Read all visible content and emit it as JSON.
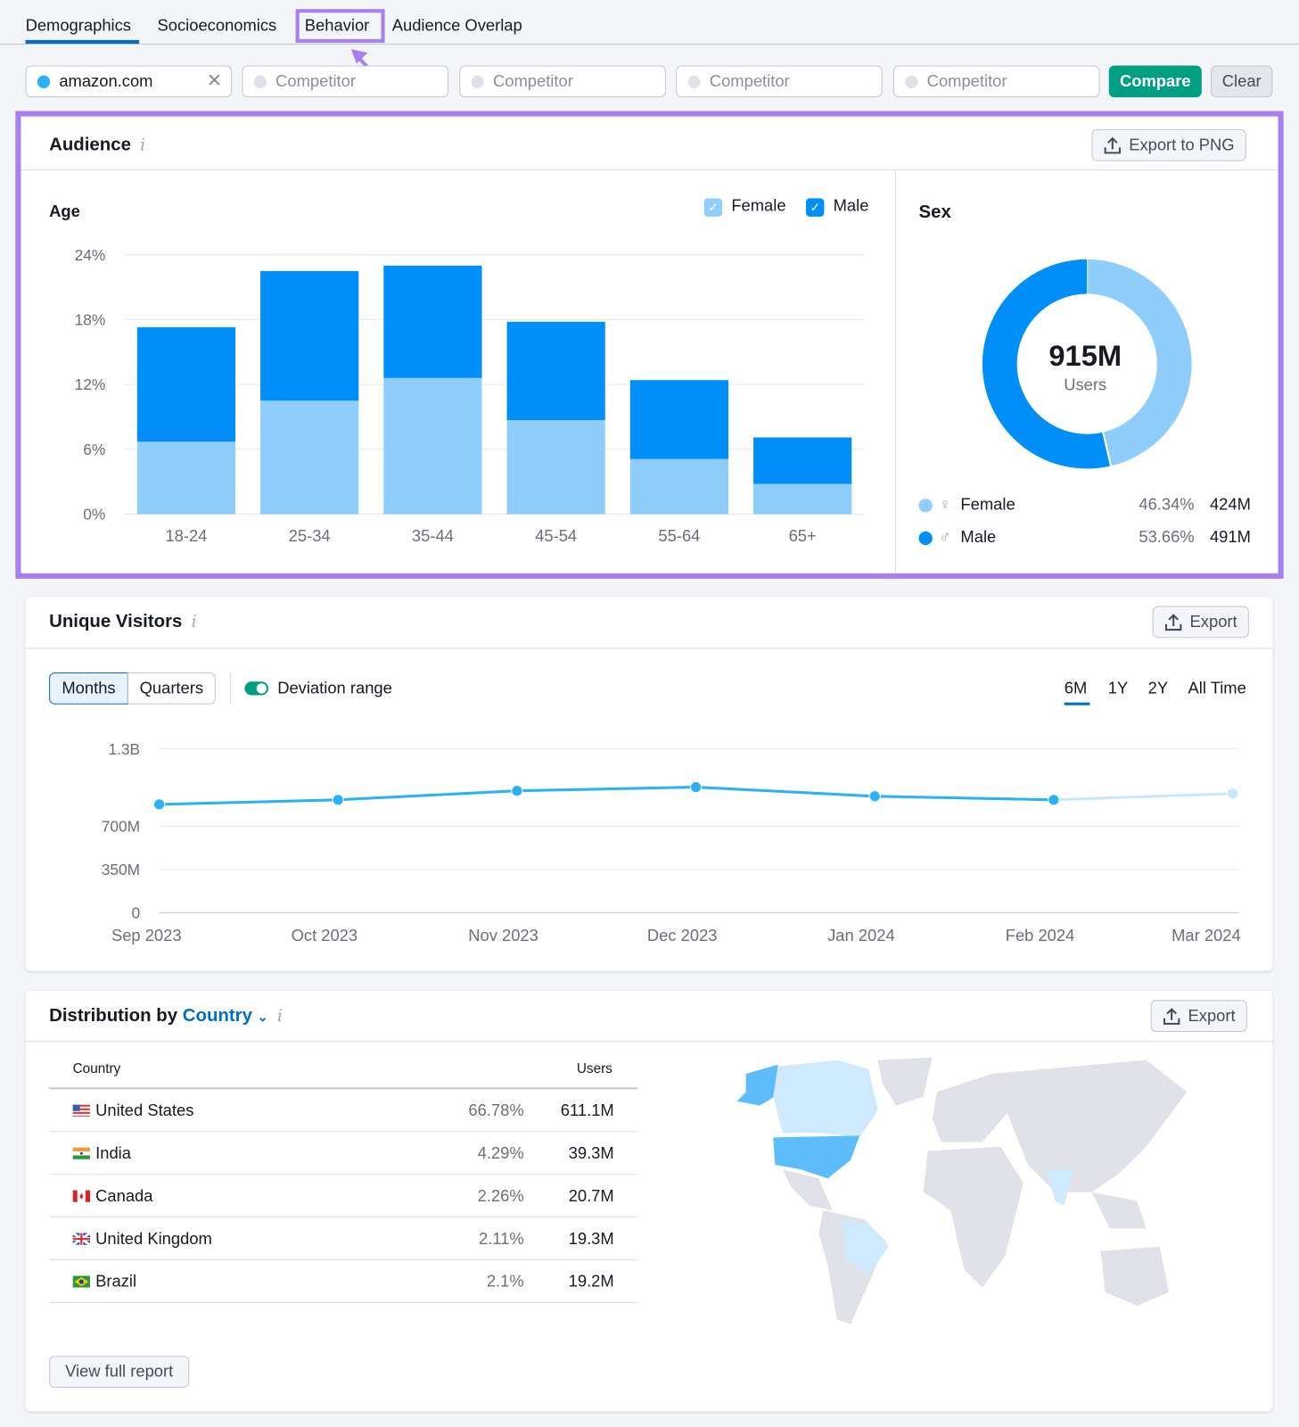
{
  "tabs": [
    {
      "label": "Demographics",
      "active": true
    },
    {
      "label": "Socioeconomics"
    },
    {
      "label": "Behavior",
      "highlighted": true
    },
    {
      "label": "Audience Overlap"
    }
  ],
  "domains": {
    "primary": "amazon.com",
    "competitor_placeholder": "Competitor",
    "compare": "Compare",
    "clear": "Clear"
  },
  "colors": {
    "accent": "#a77ff0",
    "female": "#8fcdfc",
    "male": "#008ff8",
    "compare": "#009f81",
    "link": "#006dca"
  },
  "audience": {
    "title": "Audience",
    "export": "Export to PNG",
    "age": {
      "title": "Age",
      "legend": [
        {
          "label": "Female",
          "checked": true
        },
        {
          "label": "Male",
          "checked": true
        }
      ]
    },
    "sex": {
      "title": "Sex",
      "total": "915M",
      "total_label": "Users",
      "rows": [
        {
          "label": "Female",
          "icon": "female-icon",
          "pct": "46.34%",
          "value": "424M"
        },
        {
          "label": "Male",
          "icon": "male-icon",
          "pct": "53.66%",
          "value": "491M"
        }
      ]
    }
  },
  "visitors": {
    "title": "Unique Visitors",
    "export": "Export",
    "granularity": [
      "Months",
      "Quarters"
    ],
    "granularity_selected": "Months",
    "deviation": "Deviation range",
    "deviation_on": true,
    "ranges": [
      "6M",
      "1Y",
      "2Y",
      "All Time"
    ],
    "range_selected": "6M"
  },
  "distribution": {
    "title_prefix": "Distribution by",
    "dimension": "Country",
    "export": "Export",
    "col_country": "Country",
    "col_users": "Users",
    "rows": [
      {
        "country": "United States",
        "pct": "66.78%",
        "users": "611.1M"
      },
      {
        "country": "India",
        "pct": "4.29%",
        "users": "39.3M"
      },
      {
        "country": "Canada",
        "pct": "2.26%",
        "users": "20.7M"
      },
      {
        "country": "United Kingdom",
        "pct": "2.11%",
        "users": "19.3M"
      },
      {
        "country": "Brazil",
        "pct": "2.1%",
        "users": "19.2M"
      }
    ],
    "view_full": "View full report"
  },
  "chart_data": [
    {
      "type": "bar",
      "stacked": true,
      "title": "Age",
      "categories": [
        "18-24",
        "25-34",
        "35-44",
        "45-54",
        "55-64",
        "65+"
      ],
      "series": [
        {
          "name": "Female",
          "values": [
            6.7,
            10.5,
            12.6,
            8.7,
            5.1,
            2.8
          ]
        },
        {
          "name": "Male",
          "values": [
            10.6,
            12.0,
            10.4,
            9.1,
            7.3,
            4.3
          ]
        }
      ],
      "ylim": [
        0,
        24
      ],
      "yticks": [
        "0%",
        "6%",
        "12%",
        "18%",
        "24%"
      ],
      "ytick_values": [
        0,
        6,
        12,
        18,
        24
      ],
      "grid": true,
      "legend": "top-right"
    },
    {
      "type": "pie",
      "donut": true,
      "title": "Sex",
      "labels": [
        "Female",
        "Male"
      ],
      "values": [
        46.34,
        53.66
      ]
    },
    {
      "type": "line",
      "x": [
        "Sep 2023",
        "Oct 2023",
        "Nov 2023",
        "Dec 2023",
        "Jan 2024",
        "Feb 2024",
        "Mar 2024"
      ],
      "values_millions": [
        877,
        914,
        987,
        1017,
        943,
        914,
        965
      ],
      "incomplete_last_point": true,
      "yticks": [
        "0",
        "350M",
        "700M",
        "1.3B"
      ],
      "ytick_values": [
        0,
        350,
        700,
        1300
      ],
      "grid": true
    }
  ]
}
